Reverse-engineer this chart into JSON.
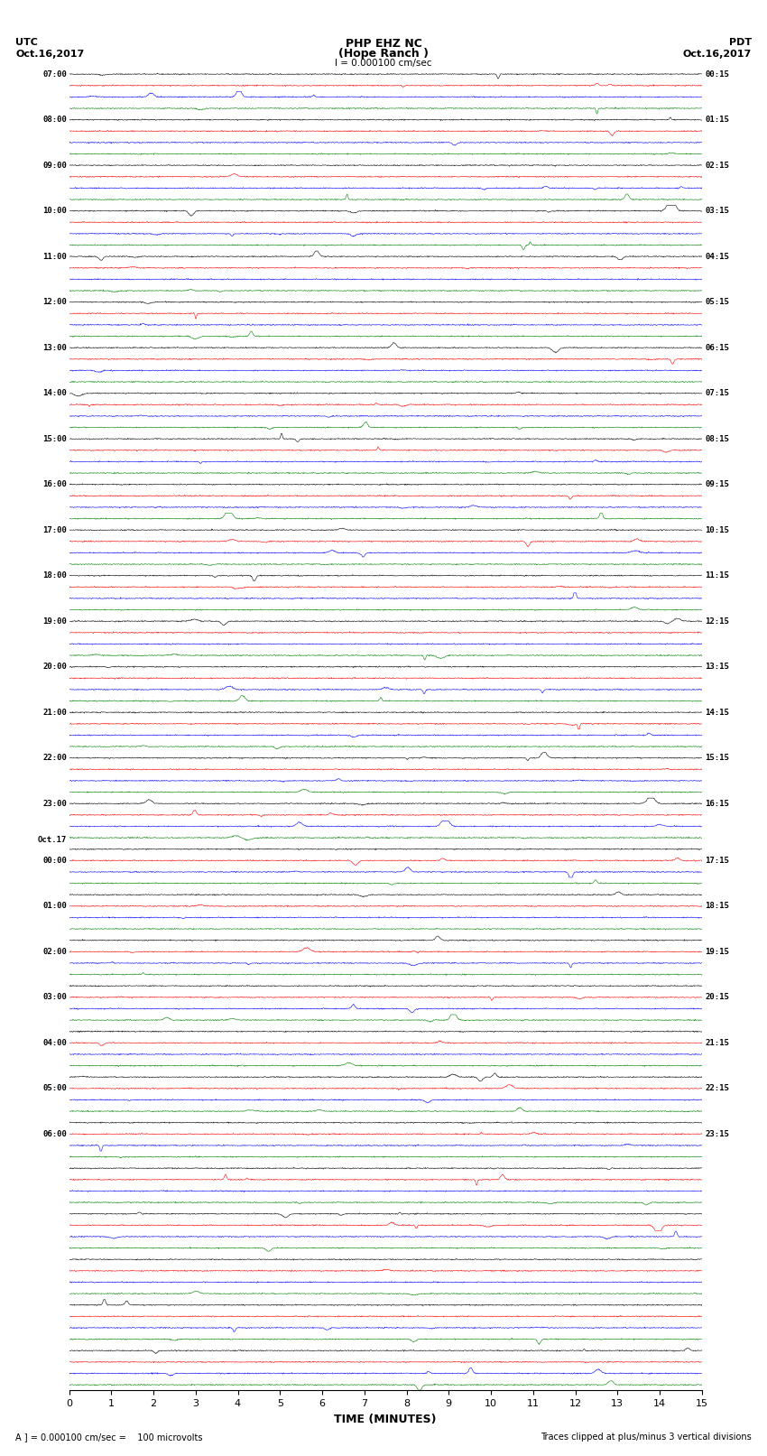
{
  "title_line1": "PHP EHZ NC",
  "title_line2": "(Hope Ranch )",
  "title_line3": "I = 0.000100 cm/sec",
  "label_utc": "UTC",
  "label_pdt": "PDT",
  "date_left": "Oct.16,2017",
  "date_right": "Oct.16,2017",
  "xlabel": "TIME (MINUTES)",
  "footer_left": "A ] = 0.000100 cm/sec =    100 microvolts",
  "footer_right": "Traces clipped at plus/minus 3 vertical divisions",
  "n_rows": 116,
  "colors": [
    "black",
    "red",
    "blue",
    "green"
  ],
  "background_color": "white",
  "xlim": [
    0,
    15
  ],
  "xticks": [
    0,
    1,
    2,
    3,
    4,
    5,
    6,
    7,
    8,
    9,
    10,
    11,
    12,
    13,
    14,
    15
  ],
  "fig_width": 8.5,
  "fig_height": 16.13,
  "dpi": 100,
  "utc_labels": [
    [
      0,
      "07:00"
    ],
    [
      4,
      "08:00"
    ],
    [
      8,
      "09:00"
    ],
    [
      12,
      "10:00"
    ],
    [
      16,
      "11:00"
    ],
    [
      20,
      "12:00"
    ],
    [
      24,
      "13:00"
    ],
    [
      28,
      "14:00"
    ],
    [
      32,
      "15:00"
    ],
    [
      36,
      "16:00"
    ],
    [
      40,
      "17:00"
    ],
    [
      44,
      "18:00"
    ],
    [
      48,
      "19:00"
    ],
    [
      52,
      "20:00"
    ],
    [
      56,
      "21:00"
    ],
    [
      60,
      "22:00"
    ],
    [
      64,
      "23:00"
    ],
    [
      68,
      "Oct.17"
    ],
    [
      69,
      "00:00"
    ],
    [
      73,
      "01:00"
    ],
    [
      77,
      "02:00"
    ],
    [
      81,
      "03:00"
    ],
    [
      85,
      "04:00"
    ],
    [
      89,
      "05:00"
    ],
    [
      93,
      "06:00"
    ]
  ],
  "pdt_labels": [
    [
      0,
      "00:15"
    ],
    [
      4,
      "01:15"
    ],
    [
      8,
      "02:15"
    ],
    [
      12,
      "03:15"
    ],
    [
      16,
      "04:15"
    ],
    [
      20,
      "05:15"
    ],
    [
      24,
      "06:15"
    ],
    [
      28,
      "07:15"
    ],
    [
      32,
      "08:15"
    ],
    [
      36,
      "09:15"
    ],
    [
      40,
      "10:15"
    ],
    [
      44,
      "11:15"
    ],
    [
      48,
      "12:15"
    ],
    [
      52,
      "13:15"
    ],
    [
      56,
      "14:15"
    ],
    [
      60,
      "15:15"
    ],
    [
      64,
      "16:15"
    ],
    [
      69,
      "17:15"
    ],
    [
      73,
      "18:15"
    ],
    [
      77,
      "19:15"
    ],
    [
      81,
      "20:15"
    ],
    [
      85,
      "21:15"
    ],
    [
      89,
      "22:15"
    ],
    [
      93,
      "23:15"
    ]
  ],
  "high_amp_rows": [
    36,
    37,
    38,
    39,
    40,
    41,
    42,
    43,
    44,
    45,
    46,
    47,
    48,
    49,
    50,
    51
  ],
  "very_high_rows": [
    52,
    53,
    54,
    55,
    56,
    57,
    58,
    59,
    60,
    61,
    62,
    63,
    64,
    65,
    66,
    67,
    68,
    69,
    70,
    71,
    72,
    73,
    74,
    75
  ]
}
